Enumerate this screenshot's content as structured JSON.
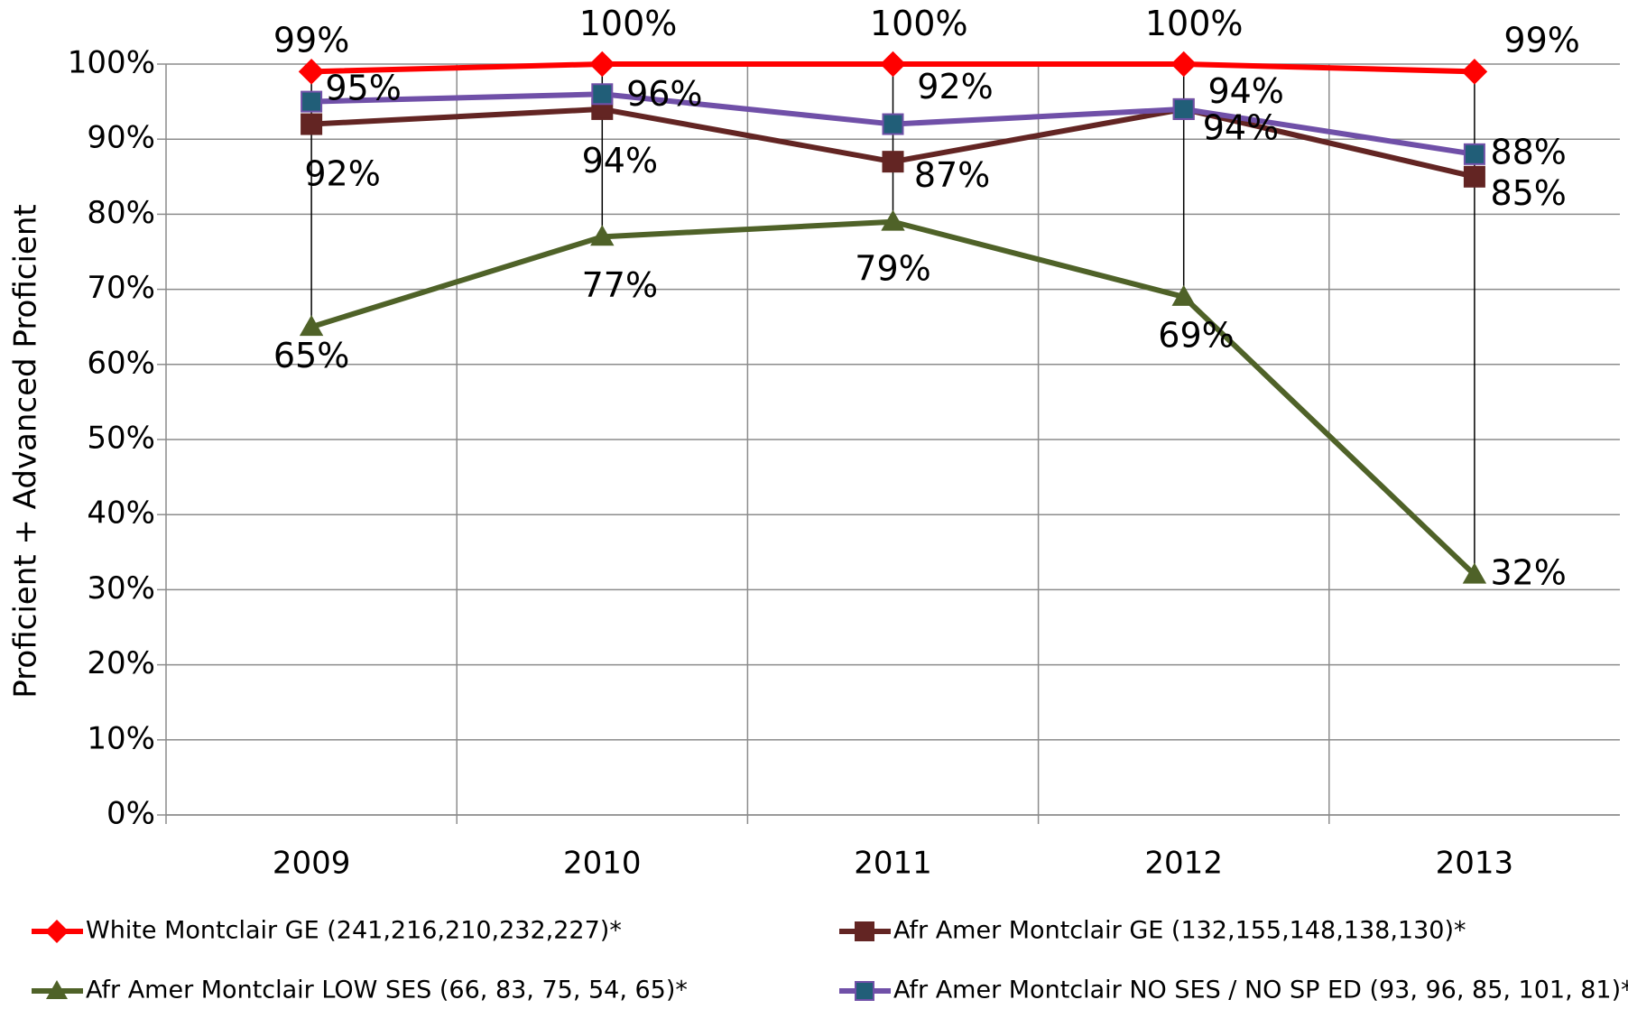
{
  "chart_data": {
    "type": "line",
    "y_label": "Proficient + Advanced Proficient",
    "categories": [
      "2009",
      "2010",
      "2011",
      "2012",
      "2013"
    ],
    "series": [
      {
        "name": "White Montclair GE (241,216,210,232,227)*",
        "color": "#ff0000",
        "marker": "diamond",
        "marker_color": "#ff0000",
        "values": [
          99,
          100,
          100,
          100,
          99
        ],
        "value_labels": [
          "99%",
          "100%",
          "100%",
          "100%",
          "99%"
        ]
      },
      {
        "name": "Afr Amer Montclair GE (132,155,148,138,130)*",
        "color": "#632523",
        "marker": "square",
        "marker_color": "#632523",
        "values": [
          92,
          94,
          87,
          94,
          85
        ],
        "value_labels": [
          "92%",
          "94%",
          "87%",
          "94%",
          "85%"
        ]
      },
      {
        "name": "Afr Amer Montclair LOW SES (66, 83, 75, 54, 65)*",
        "color": "#4f6228",
        "marker": "triangle",
        "marker_color": "#4f6228",
        "values": [
          65,
          77,
          79,
          69,
          32
        ],
        "value_labels": [
          "65%",
          "77%",
          "79%",
          "69%",
          "32%"
        ]
      },
      {
        "name": "Afr Amer Montclair NO SES / NO SP ED  (93, 96, 85, 101, 81)*",
        "color": "#7050a8",
        "marker": "square",
        "marker_color": "#215e78",
        "values": [
          95,
          96,
          92,
          94,
          88
        ],
        "value_labels": [
          "95%",
          "96%",
          "92%",
          "94%",
          "88%"
        ]
      }
    ],
    "ylim": [
      0,
      100
    ],
    "yticks": [
      {
        "value": 0,
        "label": "0%"
      },
      {
        "value": 10,
        "label": "10%"
      },
      {
        "value": 20,
        "label": "20%"
      },
      {
        "value": 30,
        "label": "30%"
      },
      {
        "value": 40,
        "label": "40%"
      },
      {
        "value": 50,
        "label": "50%"
      },
      {
        "value": 60,
        "label": "60%"
      },
      {
        "value": 70,
        "label": "70%"
      },
      {
        "value": 80,
        "label": "80%"
      },
      {
        "value": 90,
        "label": "90%"
      },
      {
        "value": 100,
        "label": "100%"
      }
    ],
    "grid": true,
    "high_low_lines": true,
    "legend": "bottom"
  }
}
